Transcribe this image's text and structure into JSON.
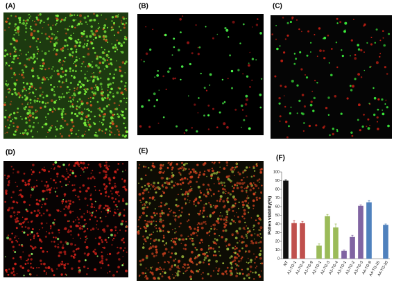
{
  "panels": [
    "(A)",
    "(B)",
    "(C)",
    "(D)",
    "(E)",
    "(F)"
  ],
  "chart_data": {
    "type": "bar",
    "ylabel": "Pollen viability(%)",
    "categories": [
      "NT",
      "A1-TG-1",
      "A1-TG-4",
      "A1-TG-9",
      "A2-TG-1",
      "A2-TG-3",
      "A2-TG-4",
      "A3-TG-1",
      "A3-TG-2",
      "A3-TG-3",
      "A4-TG-8",
      "A4-TG-15",
      "A4-TG-20"
    ],
    "values": [
      90,
      41,
      41,
      0,
      15,
      49,
      36,
      9,
      25,
      61,
      65,
      0,
      39
    ],
    "errors": [
      1,
      3,
      2,
      0,
      2,
      2,
      4,
      1,
      2,
      1,
      2,
      0,
      1
    ],
    "colors": [
      "#111111",
      "#c0504d",
      "#c0504d",
      "#c0504d",
      "#9bbb59",
      "#9bbb59",
      "#9bbb59",
      "#8064a2",
      "#8064a2",
      "#8064a2",
      "#4f81bd",
      "#4f81bd",
      "#4f81bd"
    ],
    "ylim": [
      0,
      100
    ],
    "yticks": [
      0,
      10,
      20,
      30,
      40,
      50,
      60,
      70,
      80,
      90,
      100
    ]
  }
}
